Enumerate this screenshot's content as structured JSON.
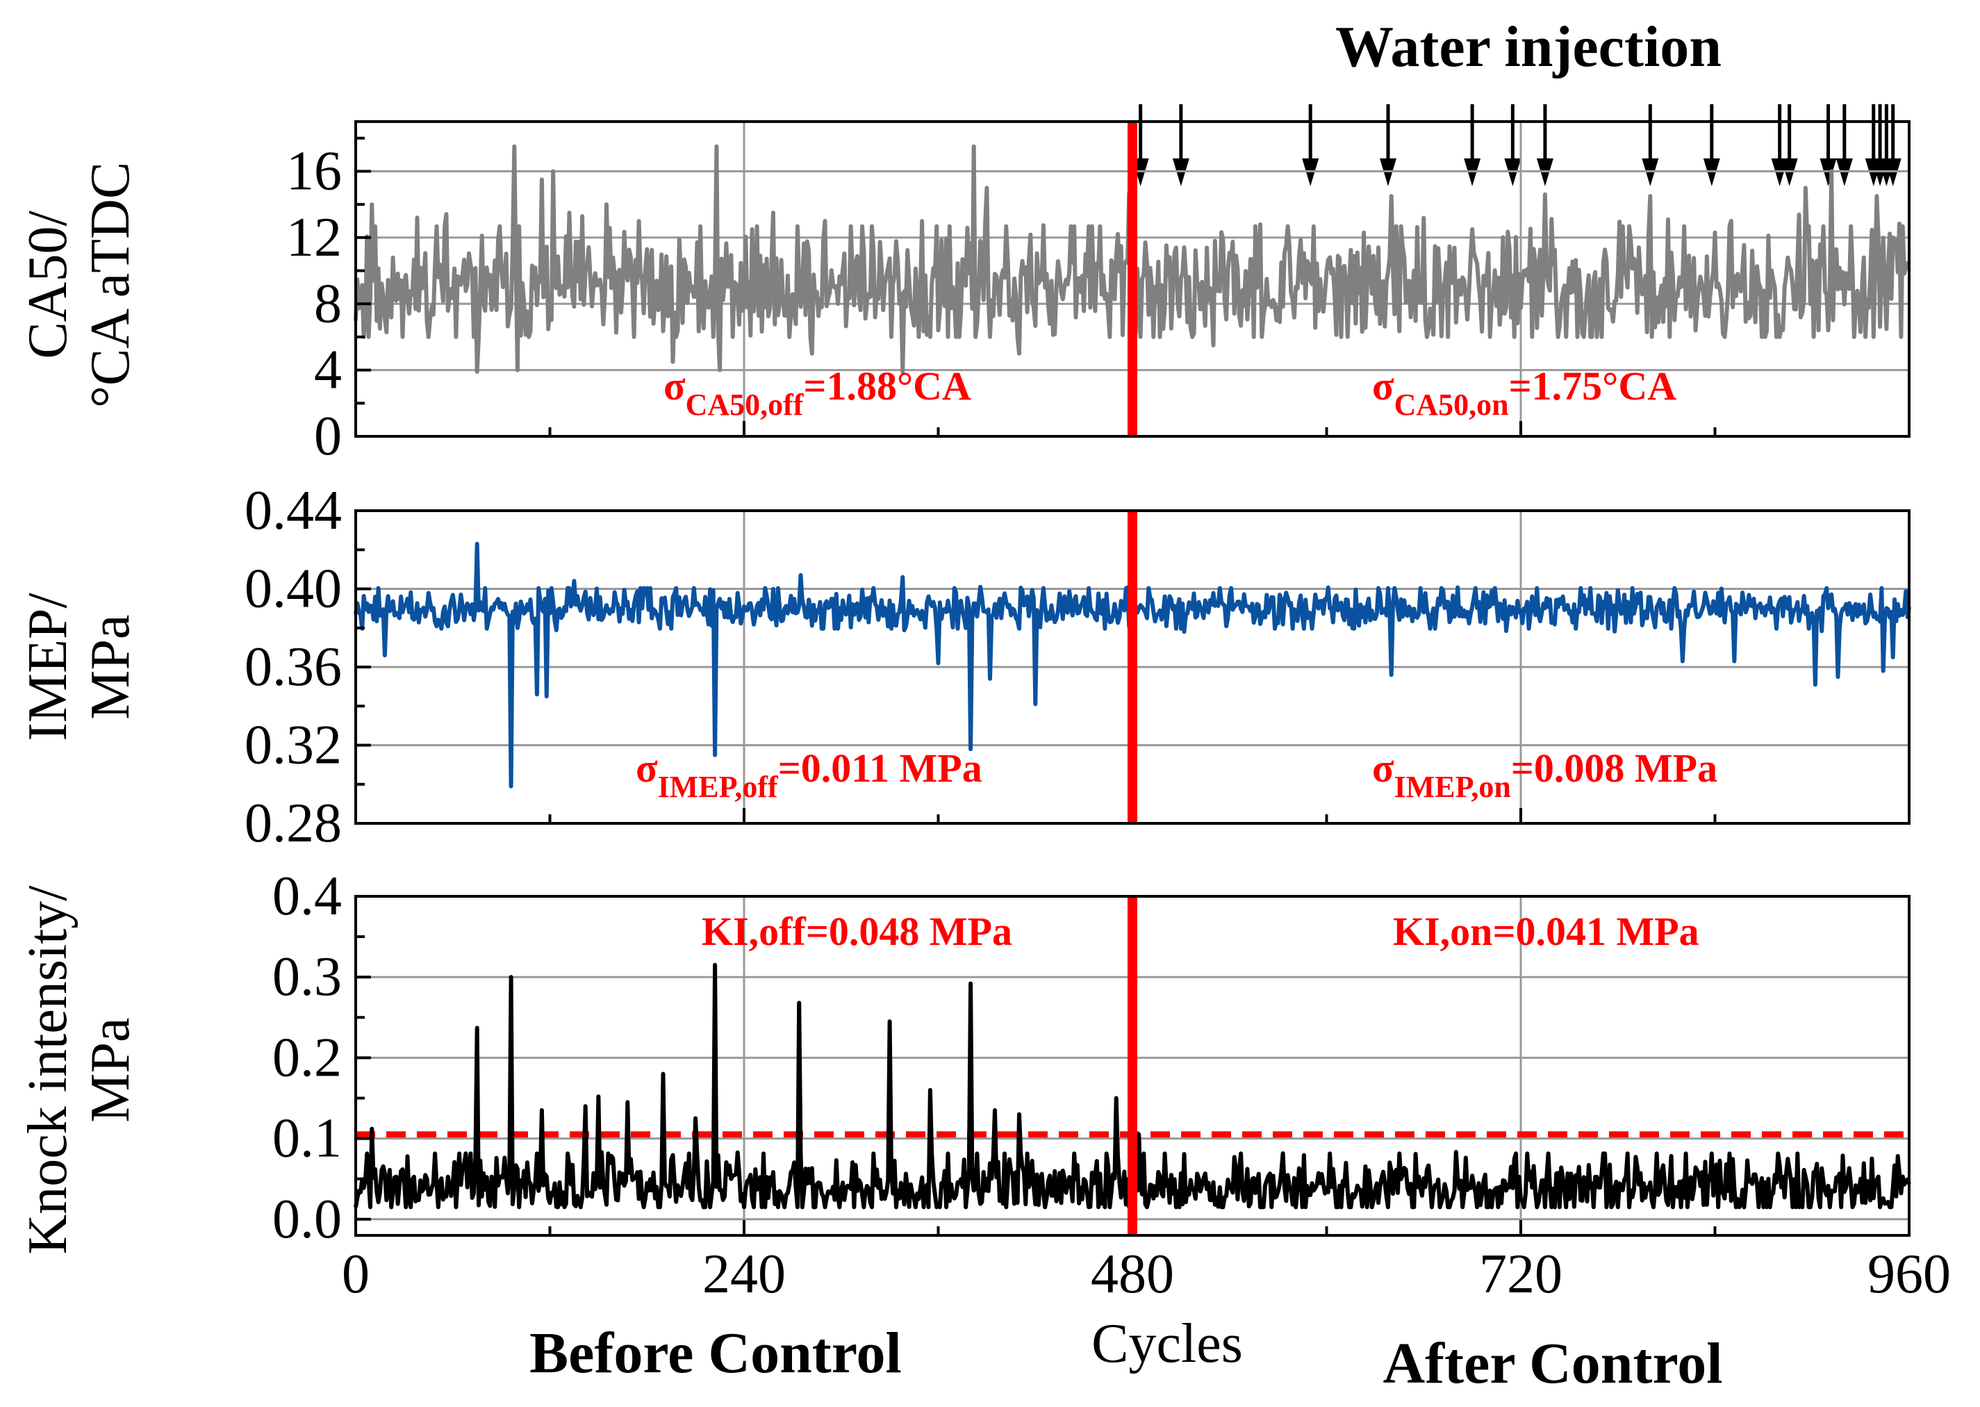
{
  "chart_data": [
    {
      "type": "line",
      "id": "ca50",
      "ylabel_line1": "CA50/",
      "ylabel_line2": "°CA aTDC",
      "ylim": [
        0,
        19
      ],
      "yticks": [
        0,
        4,
        8,
        12,
        16
      ],
      "ytick_labels": [
        "0",
        "4",
        "8",
        "12",
        "16"
      ],
      "xlim": [
        0,
        960
      ],
      "color": "#808080",
      "seed": 11,
      "baseline": 9.0,
      "noise": 1.6,
      "min": 6.0,
      "max": 13.5,
      "spikes": [
        {
          "x": 6,
          "y": 7.0
        },
        {
          "x": 10,
          "y": 14.0
        },
        {
          "x": 38,
          "y": 13.2
        },
        {
          "x": 75,
          "y": 3.9
        },
        {
          "x": 98,
          "y": 17.5
        },
        {
          "x": 100,
          "y": 4.0
        },
        {
          "x": 115,
          "y": 15.5
        },
        {
          "x": 122,
          "y": 16.0
        },
        {
          "x": 132,
          "y": 13.5
        },
        {
          "x": 155,
          "y": 14.0
        },
        {
          "x": 175,
          "y": 13.0
        },
        {
          "x": 196,
          "y": 4.5
        },
        {
          "x": 223,
          "y": 17.5
        },
        {
          "x": 225,
          "y": 4.0
        },
        {
          "x": 245,
          "y": 12.5
        },
        {
          "x": 282,
          "y": 5.0
        },
        {
          "x": 290,
          "y": 13.0
        },
        {
          "x": 338,
          "y": 3.9
        },
        {
          "x": 350,
          "y": 13.0
        },
        {
          "x": 382,
          "y": 17.5
        },
        {
          "x": 390,
          "y": 15.0
        },
        {
          "x": 410,
          "y": 5.0
        },
        {
          "x": 478,
          "y": 14.7
        },
        {
          "x": 530,
          "y": 5.5
        },
        {
          "x": 640,
          "y": 14.5
        },
        {
          "x": 690,
          "y": 12.5
        },
        {
          "x": 735,
          "y": 14.6
        },
        {
          "x": 800,
          "y": 14.5
        },
        {
          "x": 880,
          "y": 6.0
        },
        {
          "x": 896,
          "y": 15.0
        },
        {
          "x": 912,
          "y": 16.0
        },
        {
          "x": 930,
          "y": 6.3
        },
        {
          "x": 940,
          "y": 14.5
        },
        {
          "x": 950,
          "y": 12.0
        }
      ],
      "control_x": 480,
      "annotations": [
        {
          "sym": "σ",
          "sub": "CA50,off",
          "text": "=1.88°CA"
        },
        {
          "sym": "σ",
          "sub": "CA50,on",
          "text": "=1.75°CA"
        }
      ]
    },
    {
      "type": "line",
      "id": "imep",
      "ylabel_line1": "IMEP/",
      "ylabel_line2": "MPa",
      "ylim": [
        0.28,
        0.44
      ],
      "yticks": [
        0.28,
        0.32,
        0.36,
        0.4,
        0.44
      ],
      "ytick_labels": [
        "0.28",
        "0.32",
        "0.36",
        "0.40",
        "0.44"
      ],
      "xlim": [
        0,
        960
      ],
      "color": "#0a52a0",
      "seed": 23,
      "baseline": 0.39,
      "noise": 0.0045,
      "min": 0.378,
      "max": 0.401,
      "spikes": [
        {
          "x": 18,
          "y": 0.366
        },
        {
          "x": 75,
          "y": 0.423
        },
        {
          "x": 96,
          "y": 0.299
        },
        {
          "x": 112,
          "y": 0.346
        },
        {
          "x": 118,
          "y": 0.345
        },
        {
          "x": 135,
          "y": 0.404
        },
        {
          "x": 222,
          "y": 0.315
        },
        {
          "x": 275,
          "y": 0.407
        },
        {
          "x": 338,
          "y": 0.406
        },
        {
          "x": 360,
          "y": 0.362
        },
        {
          "x": 380,
          "y": 0.318
        },
        {
          "x": 392,
          "y": 0.354
        },
        {
          "x": 420,
          "y": 0.341
        },
        {
          "x": 480,
          "y": 0.366
        },
        {
          "x": 640,
          "y": 0.356
        },
        {
          "x": 820,
          "y": 0.363
        },
        {
          "x": 852,
          "y": 0.363
        },
        {
          "x": 902,
          "y": 0.351
        },
        {
          "x": 916,
          "y": 0.355
        },
        {
          "x": 944,
          "y": 0.358
        },
        {
          "x": 950,
          "y": 0.365
        }
      ],
      "control_x": 480,
      "annotations": [
        {
          "sym": "σ",
          "sub": "IMEP,off",
          "text": "=0.011 MPa"
        },
        {
          "sym": "σ",
          "sub": "IMEP,on",
          "text": "=0.008 MPa"
        }
      ]
    },
    {
      "type": "line",
      "id": "knock",
      "ylabel_line1": "Knock intensity/",
      "ylabel_line2": "MPa",
      "ylim": [
        -0.02,
        0.4
      ],
      "yticks": [
        0.0,
        0.1,
        0.2,
        0.3,
        0.4
      ],
      "ytick_labels": [
        "0.0",
        "0.1",
        "0.2",
        "0.3",
        "0.4"
      ],
      "xlim": [
        0,
        960
      ],
      "xticks": [
        0,
        240,
        480,
        720,
        960
      ],
      "xtick_labels": [
        "0",
        "240",
        "480",
        "720",
        "960"
      ],
      "xlabel": "Cycles",
      "color": "#000000",
      "seed": 37,
      "baseline": 0.04,
      "noise": 0.018,
      "min": 0.015,
      "max": 0.095,
      "spikes": [
        {
          "x": 10,
          "y": 0.112
        },
        {
          "x": 75,
          "y": 0.237
        },
        {
          "x": 96,
          "y": 0.3
        },
        {
          "x": 115,
          "y": 0.135
        },
        {
          "x": 142,
          "y": 0.14
        },
        {
          "x": 150,
          "y": 0.152
        },
        {
          "x": 168,
          "y": 0.145
        },
        {
          "x": 190,
          "y": 0.18
        },
        {
          "x": 210,
          "y": 0.125
        },
        {
          "x": 222,
          "y": 0.315
        },
        {
          "x": 274,
          "y": 0.268
        },
        {
          "x": 330,
          "y": 0.245
        },
        {
          "x": 355,
          "y": 0.16
        },
        {
          "x": 380,
          "y": 0.292
        },
        {
          "x": 395,
          "y": 0.135
        },
        {
          "x": 410,
          "y": 0.13
        },
        {
          "x": 470,
          "y": 0.15
        },
        {
          "x": 484,
          "y": 0.105
        }
      ],
      "threshold": 0.105,
      "control_x": 480,
      "annotations": [
        {
          "sym": "",
          "sub": "",
          "text": "KI,off=0.048 MPa"
        },
        {
          "sym": "",
          "sub": "",
          "text": "KI,on=0.041 MPa"
        }
      ]
    }
  ],
  "water_injection": {
    "label": "Water injection",
    "cycles": [
      485,
      510,
      590,
      638,
      690,
      715,
      735,
      800,
      838,
      880,
      886,
      910,
      920,
      938,
      942,
      946,
      950
    ]
  },
  "bottom_labels": {
    "before": "Before Control",
    "after": "After Control"
  },
  "colors": {
    "control_line": "#ff0000",
    "annotation": "#ff0000",
    "grid": "#999999"
  }
}
